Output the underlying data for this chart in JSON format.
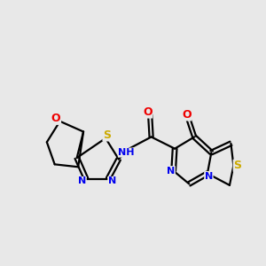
{
  "bg_color": "#e8e8e8",
  "bond_color": "#000000",
  "atom_colors": {
    "N": "#0000ee",
    "O": "#ee0000",
    "S": "#ccaa00",
    "H": "#000000"
  },
  "figsize": [
    3.0,
    3.0
  ],
  "dpi": 100
}
